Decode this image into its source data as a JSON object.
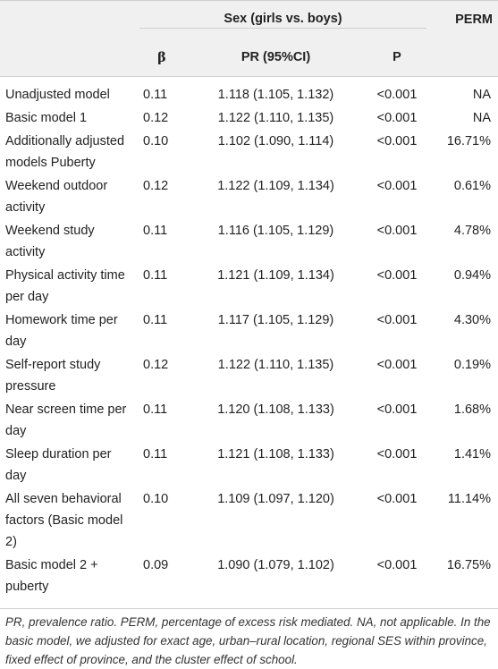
{
  "header": {
    "group_label": "Sex (girls vs. boys)",
    "perm_label": "PERM",
    "col_beta": "β",
    "col_pr": "PR (95%CI)",
    "col_p": "P"
  },
  "rows": [
    {
      "label": "Unadjusted model",
      "beta": "0.11",
      "pr": "1.118 (1.105, 1.132)",
      "p": "<0.001",
      "perm": "NA"
    },
    {
      "label": "Basic model 1",
      "beta": "0.12",
      "pr": "1.122 (1.110, 1.135)",
      "p": "<0.001",
      "perm": "NA"
    },
    {
      "label": "Additionally adjusted models Puberty",
      "beta": "0.10",
      "pr": "1.102 (1.090, 1.114)",
      "p": "<0.001",
      "perm": "16.71%"
    },
    {
      "label": "Weekend outdoor activity",
      "beta": "0.12",
      "pr": "1.122 (1.109, 1.134)",
      "p": "<0.001",
      "perm": "0.61%"
    },
    {
      "label": "Weekend study activity",
      "beta": "0.11",
      "pr": "1.116 (1.105, 1.129)",
      "p": "<0.001",
      "perm": "4.78%"
    },
    {
      "label": "Physical activity time per day",
      "beta": "0.11",
      "pr": "1.121 (1.109, 1.134)",
      "p": "<0.001",
      "perm": "0.94%"
    },
    {
      "label": "Homework time per day",
      "beta": "0.11",
      "pr": "1.117 (1.105, 1.129)",
      "p": "<0.001",
      "perm": "4.30%"
    },
    {
      "label": "Self-report study pressure",
      "beta": "0.12",
      "pr": "1.122 (1.110, 1.135)",
      "p": "<0.001",
      "perm": "0.19%"
    },
    {
      "label": "Near screen time per day",
      "beta": "0.11",
      "pr": "1.120 (1.108, 1.133)",
      "p": "<0.001",
      "perm": "1.68%"
    },
    {
      "label": "Sleep duration per day",
      "beta": "0.11",
      "pr": "1.121 (1.108, 1.133)",
      "p": "<0.001",
      "perm": "1.41%"
    },
    {
      "label": "All seven behavioral factors (Basic model 2)",
      "beta": "0.10",
      "pr": "1.109 (1.097, 1.120)",
      "p": "<0.001",
      "perm": "11.14%"
    },
    {
      "label": "Basic model 2 + puberty",
      "beta": "0.09",
      "pr": "1.090 (1.079, 1.102)",
      "p": "<0.001",
      "perm": "16.75%"
    }
  ],
  "footnote": "PR, prevalence ratio. PERM, percentage of excess risk mediated. NA, not applicable. In the basic model, we adjusted for exact age, urban–rural location, regional SES within province, fixed effect of province, and the cluster effect of school."
}
